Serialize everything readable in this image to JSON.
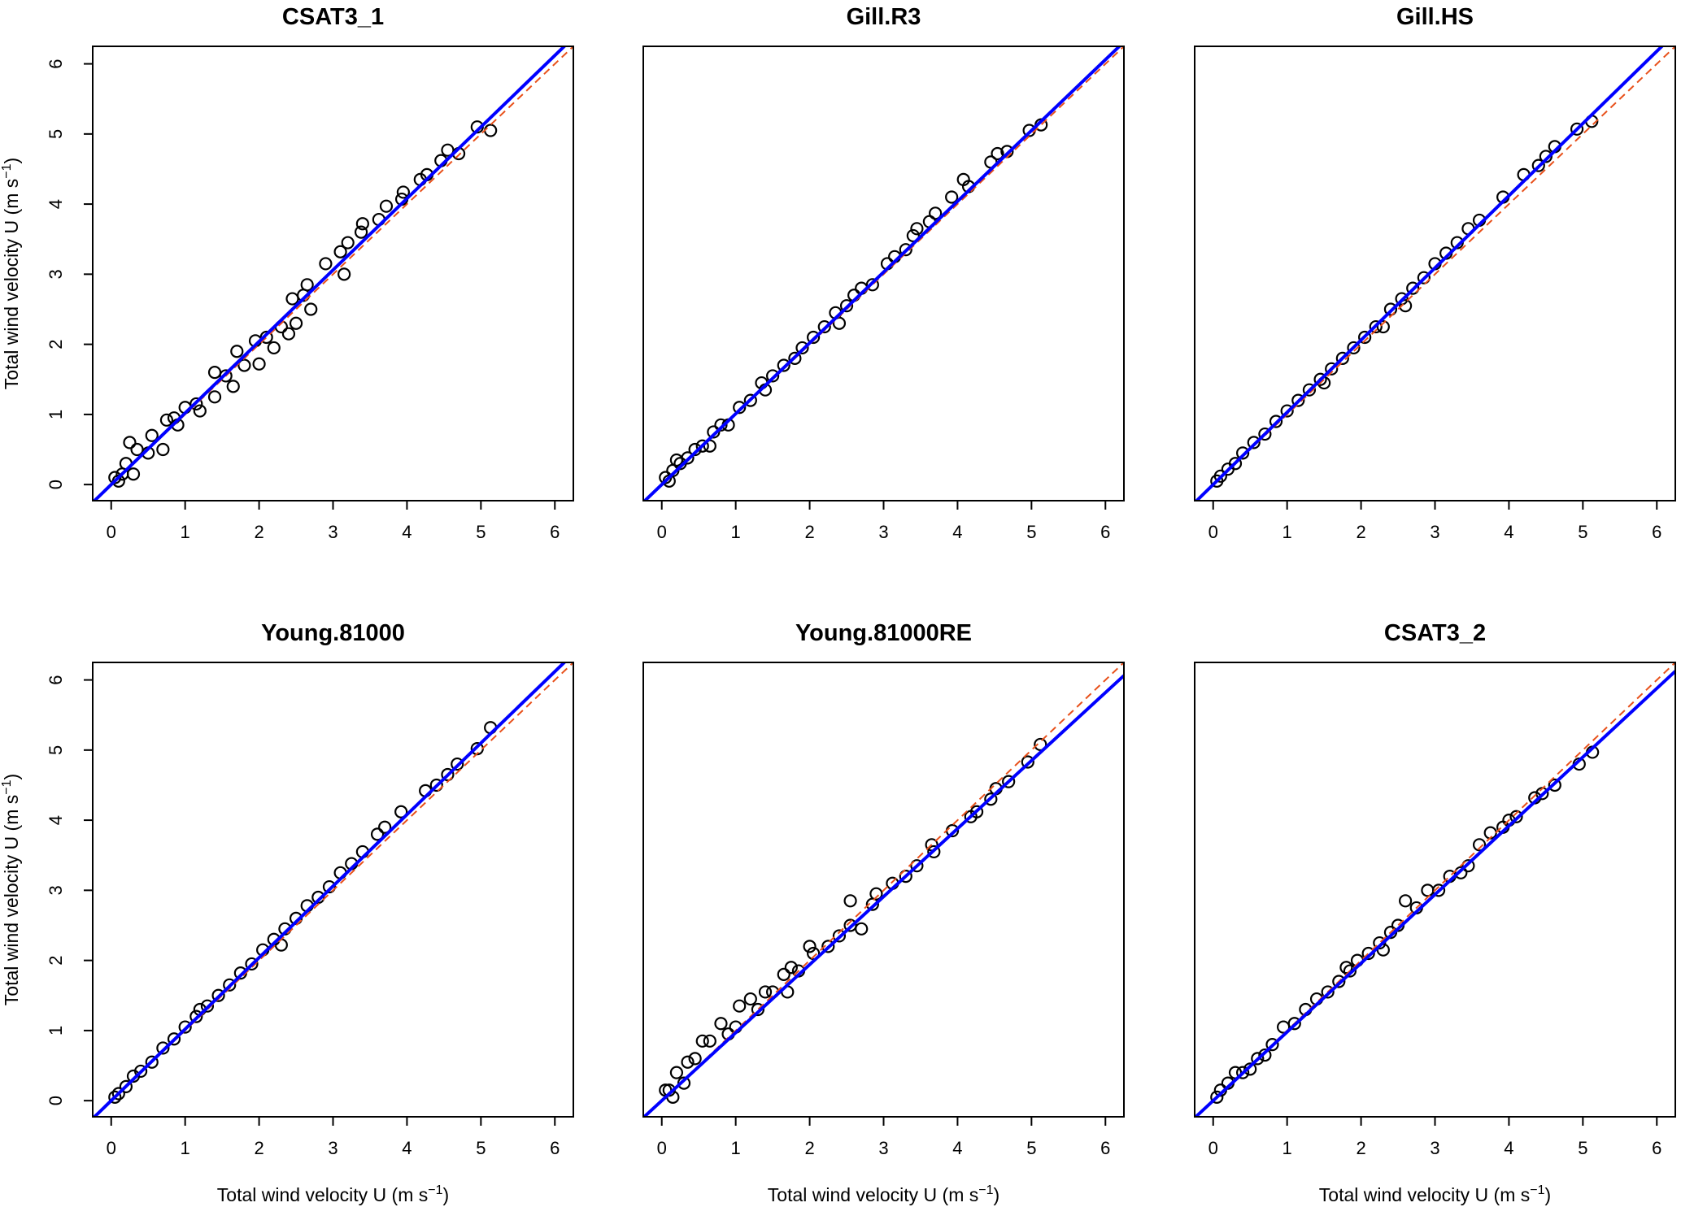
{
  "chart_data": {
    "type": "scatter",
    "layout": "2x3 panel grid",
    "xlabel": {
      "main": "Total wind velocity U (m s",
      "sup": "−1",
      "end": ")"
    },
    "ylabel": {
      "main": "Total wind velocity U (m s",
      "sup": "−1",
      "end": ")"
    },
    "xlim": [
      -0.25,
      6.25
    ],
    "ylim": [
      -0.23,
      6.25
    ],
    "xticks": [
      0,
      1,
      2,
      3,
      4,
      5,
      6
    ],
    "yticks": [
      0,
      1,
      2,
      3,
      4,
      5,
      6
    ],
    "colors": {
      "points": "#000000",
      "fit_line": "#0000ff",
      "one_to_one": "#e8501a"
    },
    "lines": {
      "fit": "solid blue regression line",
      "reference": "dashed orange 1:1 line"
    },
    "panels": [
      {
        "title": "CSAT3_1",
        "fit": {
          "slope": 1.02,
          "intercept": 0.0
        },
        "points": [
          [
            4.95,
            5.1
          ],
          [
            5.13,
            5.05
          ],
          [
            4.55,
            4.77
          ],
          [
            4.46,
            4.62
          ],
          [
            4.7,
            4.72
          ],
          [
            4.27,
            4.42
          ],
          [
            4.18,
            4.35
          ],
          [
            3.95,
            4.17
          ],
          [
            3.93,
            4.07
          ],
          [
            3.72,
            3.97
          ],
          [
            3.62,
            3.78
          ],
          [
            3.4,
            3.72
          ],
          [
            3.38,
            3.6
          ],
          [
            3.15,
            3.0
          ],
          [
            3.2,
            3.45
          ],
          [
            3.1,
            3.32
          ],
          [
            2.9,
            3.15
          ],
          [
            2.65,
            2.85
          ],
          [
            2.7,
            2.5
          ],
          [
            2.45,
            2.65
          ],
          [
            2.5,
            2.3
          ],
          [
            2.2,
            1.95
          ],
          [
            2.0,
            1.72
          ],
          [
            2.1,
            2.1
          ],
          [
            1.95,
            2.05
          ],
          [
            1.8,
            1.7
          ],
          [
            1.65,
            1.4
          ],
          [
            1.55,
            1.55
          ],
          [
            1.4,
            1.6
          ],
          [
            1.4,
            1.25
          ],
          [
            1.2,
            1.05
          ],
          [
            1.0,
            1.1
          ],
          [
            0.9,
            0.85
          ],
          [
            0.75,
            0.92
          ],
          [
            0.7,
            0.5
          ],
          [
            0.55,
            0.7
          ],
          [
            0.5,
            0.45
          ],
          [
            0.35,
            0.5
          ],
          [
            0.25,
            0.6
          ],
          [
            0.2,
            0.3
          ],
          [
            0.15,
            0.15
          ],
          [
            0.05,
            0.1
          ],
          [
            0.1,
            0.05
          ],
          [
            0.3,
            0.15
          ],
          [
            1.15,
            1.15
          ],
          [
            2.3,
            2.25
          ],
          [
            2.6,
            2.7
          ],
          [
            1.7,
            1.9
          ],
          [
            0.85,
            0.95
          ],
          [
            2.4,
            2.15
          ]
        ]
      },
      {
        "title": "Gill.R3",
        "fit": {
          "slope": 1.01,
          "intercept": 0.0
        },
        "points": [
          [
            5.13,
            5.13
          ],
          [
            4.97,
            5.05
          ],
          [
            4.67,
            4.75
          ],
          [
            4.54,
            4.72
          ],
          [
            4.45,
            4.6
          ],
          [
            4.15,
            4.25
          ],
          [
            4.08,
            4.35
          ],
          [
            3.92,
            4.1
          ],
          [
            3.7,
            3.87
          ],
          [
            3.62,
            3.75
          ],
          [
            3.4,
            3.55
          ],
          [
            3.45,
            3.65
          ],
          [
            3.3,
            3.35
          ],
          [
            3.15,
            3.25
          ],
          [
            3.05,
            3.15
          ],
          [
            2.85,
            2.85
          ],
          [
            2.7,
            2.8
          ],
          [
            2.6,
            2.7
          ],
          [
            2.5,
            2.55
          ],
          [
            2.35,
            2.45
          ],
          [
            2.2,
            2.25
          ],
          [
            2.05,
            2.1
          ],
          [
            1.9,
            1.95
          ],
          [
            1.8,
            1.8
          ],
          [
            1.65,
            1.7
          ],
          [
            1.5,
            1.55
          ],
          [
            1.35,
            1.45
          ],
          [
            1.2,
            1.2
          ],
          [
            1.05,
            1.1
          ],
          [
            0.9,
            0.85
          ],
          [
            0.8,
            0.85
          ],
          [
            0.7,
            0.75
          ],
          [
            0.55,
            0.55
          ],
          [
            0.45,
            0.5
          ],
          [
            0.35,
            0.38
          ],
          [
            0.25,
            0.3
          ],
          [
            0.15,
            0.2
          ],
          [
            0.05,
            0.1
          ],
          [
            0.1,
            0.05
          ],
          [
            0.2,
            0.35
          ],
          [
            2.4,
            2.3
          ],
          [
            1.4,
            1.35
          ],
          [
            0.65,
            0.55
          ]
        ]
      },
      {
        "title": "Gill.HS",
        "fit": {
          "slope": 1.03,
          "intercept": 0.0
        },
        "points": [
          [
            5.12,
            5.18
          ],
          [
            4.92,
            5.07
          ],
          [
            4.62,
            4.82
          ],
          [
            4.5,
            4.68
          ],
          [
            4.4,
            4.55
          ],
          [
            4.2,
            4.42
          ],
          [
            3.92,
            4.1
          ],
          [
            3.6,
            3.77
          ],
          [
            3.45,
            3.65
          ],
          [
            3.3,
            3.45
          ],
          [
            3.15,
            3.3
          ],
          [
            3.0,
            3.15
          ],
          [
            2.85,
            2.95
          ],
          [
            2.7,
            2.8
          ],
          [
            2.55,
            2.65
          ],
          [
            2.4,
            2.5
          ],
          [
            2.2,
            2.25
          ],
          [
            2.05,
            2.1
          ],
          [
            1.9,
            1.95
          ],
          [
            1.75,
            1.8
          ],
          [
            1.6,
            1.65
          ],
          [
            1.45,
            1.5
          ],
          [
            1.3,
            1.35
          ],
          [
            1.15,
            1.2
          ],
          [
            1.0,
            1.05
          ],
          [
            0.85,
            0.9
          ],
          [
            0.7,
            0.72
          ],
          [
            0.55,
            0.6
          ],
          [
            0.4,
            0.45
          ],
          [
            0.3,
            0.3
          ],
          [
            0.2,
            0.22
          ],
          [
            0.1,
            0.12
          ],
          [
            0.05,
            0.05
          ],
          [
            2.3,
            2.25
          ],
          [
            1.5,
            1.45
          ],
          [
            2.6,
            2.55
          ]
        ]
      },
      {
        "title": "Young.81000",
        "fit": {
          "slope": 1.02,
          "intercept": 0.0
        },
        "points": [
          [
            5.13,
            5.32
          ],
          [
            4.95,
            5.02
          ],
          [
            4.68,
            4.8
          ],
          [
            4.55,
            4.65
          ],
          [
            4.4,
            4.5
          ],
          [
            4.25,
            4.42
          ],
          [
            3.92,
            4.12
          ],
          [
            3.7,
            3.9
          ],
          [
            3.6,
            3.8
          ],
          [
            3.4,
            3.55
          ],
          [
            3.25,
            3.38
          ],
          [
            3.1,
            3.25
          ],
          [
            2.95,
            3.05
          ],
          [
            2.8,
            2.9
          ],
          [
            2.65,
            2.78
          ],
          [
            2.5,
            2.6
          ],
          [
            2.35,
            2.45
          ],
          [
            2.2,
            2.3
          ],
          [
            2.05,
            2.15
          ],
          [
            1.9,
            1.95
          ],
          [
            1.75,
            1.82
          ],
          [
            1.6,
            1.65
          ],
          [
            1.45,
            1.5
          ],
          [
            1.3,
            1.35
          ],
          [
            1.15,
            1.2
          ],
          [
            1.0,
            1.05
          ],
          [
            0.85,
            0.88
          ],
          [
            0.7,
            0.75
          ],
          [
            0.55,
            0.55
          ],
          [
            0.4,
            0.42
          ],
          [
            0.3,
            0.35
          ],
          [
            0.2,
            0.2
          ],
          [
            0.1,
            0.1
          ],
          [
            0.05,
            0.05
          ],
          [
            2.3,
            2.22
          ],
          [
            1.2,
            1.3
          ]
        ]
      },
      {
        "title": "Young.81000RE",
        "fit": {
          "slope": 0.97,
          "intercept": 0.0
        },
        "points": [
          [
            5.12,
            5.08
          ],
          [
            4.95,
            4.83
          ],
          [
            4.69,
            4.55
          ],
          [
            4.52,
            4.45
          ],
          [
            4.45,
            4.3
          ],
          [
            4.26,
            4.12
          ],
          [
            4.18,
            4.05
          ],
          [
            3.93,
            3.85
          ],
          [
            3.65,
            3.65
          ],
          [
            3.68,
            3.55
          ],
          [
            3.45,
            3.35
          ],
          [
            3.3,
            3.2
          ],
          [
            3.12,
            3.1
          ],
          [
            2.9,
            2.95
          ],
          [
            2.85,
            2.8
          ],
          [
            2.55,
            2.85
          ],
          [
            2.7,
            2.45
          ],
          [
            2.55,
            2.5
          ],
          [
            2.4,
            2.35
          ],
          [
            2.25,
            2.2
          ],
          [
            2.0,
            2.2
          ],
          [
            2.05,
            2.1
          ],
          [
            1.85,
            1.85
          ],
          [
            1.75,
            1.9
          ],
          [
            1.65,
            1.8
          ],
          [
            1.7,
            1.55
          ],
          [
            1.5,
            1.55
          ],
          [
            1.4,
            1.55
          ],
          [
            1.3,
            1.3
          ],
          [
            1.2,
            1.45
          ],
          [
            1.05,
            1.35
          ],
          [
            1.0,
            1.05
          ],
          [
            0.9,
            0.95
          ],
          [
            0.8,
            1.1
          ],
          [
            0.65,
            0.85
          ],
          [
            0.55,
            0.85
          ],
          [
            0.45,
            0.6
          ],
          [
            0.35,
            0.55
          ],
          [
            0.3,
            0.25
          ],
          [
            0.2,
            0.4
          ],
          [
            0.1,
            0.15
          ],
          [
            0.05,
            0.15
          ],
          [
            0.15,
            0.05
          ]
        ]
      },
      {
        "title": "CSAT3_2",
        "fit": {
          "slope": 0.98,
          "intercept": 0.0
        },
        "points": [
          [
            5.13,
            4.97
          ],
          [
            4.95,
            4.8
          ],
          [
            4.62,
            4.5
          ],
          [
            4.45,
            4.38
          ],
          [
            4.35,
            4.32
          ],
          [
            4.1,
            4.05
          ],
          [
            4.0,
            4.0
          ],
          [
            3.92,
            3.9
          ],
          [
            3.75,
            3.82
          ],
          [
            3.6,
            3.65
          ],
          [
            3.45,
            3.35
          ],
          [
            3.35,
            3.25
          ],
          [
            3.2,
            3.2
          ],
          [
            3.05,
            3.0
          ],
          [
            2.9,
            3.0
          ],
          [
            2.75,
            2.75
          ],
          [
            2.6,
            2.85
          ],
          [
            2.5,
            2.5
          ],
          [
            2.4,
            2.4
          ],
          [
            2.25,
            2.25
          ],
          [
            2.1,
            2.1
          ],
          [
            1.95,
            2.0
          ],
          [
            1.85,
            1.85
          ],
          [
            1.7,
            1.7
          ],
          [
            1.55,
            1.55
          ],
          [
            1.4,
            1.45
          ],
          [
            1.25,
            1.3
          ],
          [
            1.1,
            1.1
          ],
          [
            0.95,
            1.05
          ],
          [
            0.8,
            0.8
          ],
          [
            0.7,
            0.65
          ],
          [
            0.6,
            0.6
          ],
          [
            0.5,
            0.45
          ],
          [
            0.4,
            0.4
          ],
          [
            0.3,
            0.4
          ],
          [
            0.2,
            0.25
          ],
          [
            0.1,
            0.15
          ],
          [
            0.05,
            0.05
          ],
          [
            2.3,
            2.15
          ],
          [
            1.8,
            1.9
          ]
        ]
      }
    ]
  }
}
